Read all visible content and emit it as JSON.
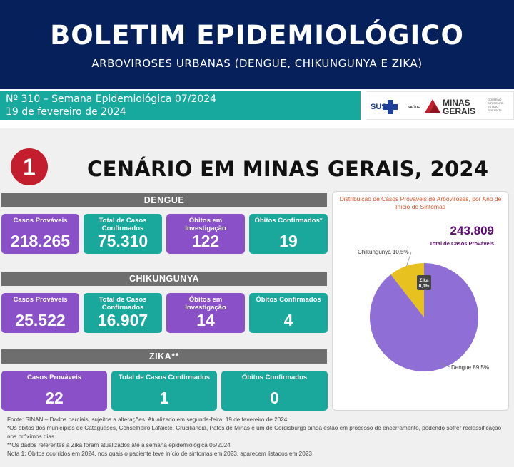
{
  "header": {
    "title": "BOLETIM EPIDEMIOLÓGICO",
    "subtitle": "ARBOVIROSES URBANAS (DENGUE, CHIKUNGUNYA E ZIKA)"
  },
  "edition": {
    "number_line": "Nº 310 – Semana Epidemiológica 07/2024",
    "date_line": "19 de fevereiro de 2024"
  },
  "logos": {
    "sus": "SUS",
    "saude": "SAÚDE",
    "minas1": "MINAS",
    "minas2": "GERAIS",
    "gov": [
      "GOVERNO",
      "DIFERENTE.",
      "ESTADO",
      "EFICIENTE."
    ]
  },
  "scenario": {
    "number": "1",
    "title": "CENÁRIO EM MINAS GERAIS, 2024"
  },
  "dengue": {
    "label": "DENGUE",
    "cards": [
      {
        "label": "Casos Prováveis",
        "value": "218.265"
      },
      {
        "label": "Total de Casos Confirmados",
        "value": "75.310"
      },
      {
        "label": "Óbitos em Investigação",
        "value": "122"
      },
      {
        "label": "Óbitos Confirmados*",
        "value": "19"
      }
    ]
  },
  "chikungunya": {
    "label": "CHIKUNGUNYA",
    "cards": [
      {
        "label": "Casos Prováveis",
        "value": "25.522"
      },
      {
        "label": "Total de Casos Confirmados",
        "value": "16.907"
      },
      {
        "label": "Óbitos em Investigação",
        "value": "14"
      },
      {
        "label": "Óbitos Confirmados",
        "value": "4"
      }
    ]
  },
  "zika": {
    "label": "ZIKA**",
    "cards": [
      {
        "label": "Casos Prováveis",
        "value": "22"
      },
      {
        "label": "Total de Casos Confirmados",
        "value": "1"
      },
      {
        "label": "Óbitos Confirmados",
        "value": "0"
      }
    ]
  },
  "chart_data": {
    "type": "pie",
    "title": "Distribuição de Casos Prováveis de Arboviroses, por Ano de Início de Sintomas",
    "total_value": "243.809",
    "total_label": "Total de Casos Prováveis",
    "slices": [
      {
        "name": "Dengue",
        "value": 89.5,
        "label": "Dengue 89,5%",
        "color": "#8f6fd6"
      },
      {
        "name": "Chikungunya",
        "value": 10.5,
        "label": "Chikungunya 10,5%",
        "color": "#e6c120"
      },
      {
        "name": "Zika",
        "value": 0.0,
        "label1": "Zika",
        "label2": "0,0%",
        "color": "#444444"
      }
    ]
  },
  "footer": {
    "lines": [
      "Fonte: SINAN – Dados parciais, sujeitos a alterações. Atualizado em segunda-feira, 19 de fevereiro de 2024.",
      "*Os óbitos dos municípios de Cataguases, Conselheiro Lafaiete, Cruciliândia, Patos de Minas e um de Cordisburgo ainda estão em processo de encerramento, podendo sofrer reclassificação",
      "nos próximos dias.",
      "**Os dados referentes à Zika foram atualizados até a semana epidemiológica 05/2024",
      "Nota 1: Óbitos ocorridos em 2024, nos quais o paciente teve início de sintomas em 2023, aparecem listados em 2023"
    ]
  },
  "colors": {
    "navy": "#06205b",
    "teal": "#17a99d",
    "purple": "#8a50c8",
    "red": "#c31e2d",
    "gray": "#6e6e6e"
  }
}
